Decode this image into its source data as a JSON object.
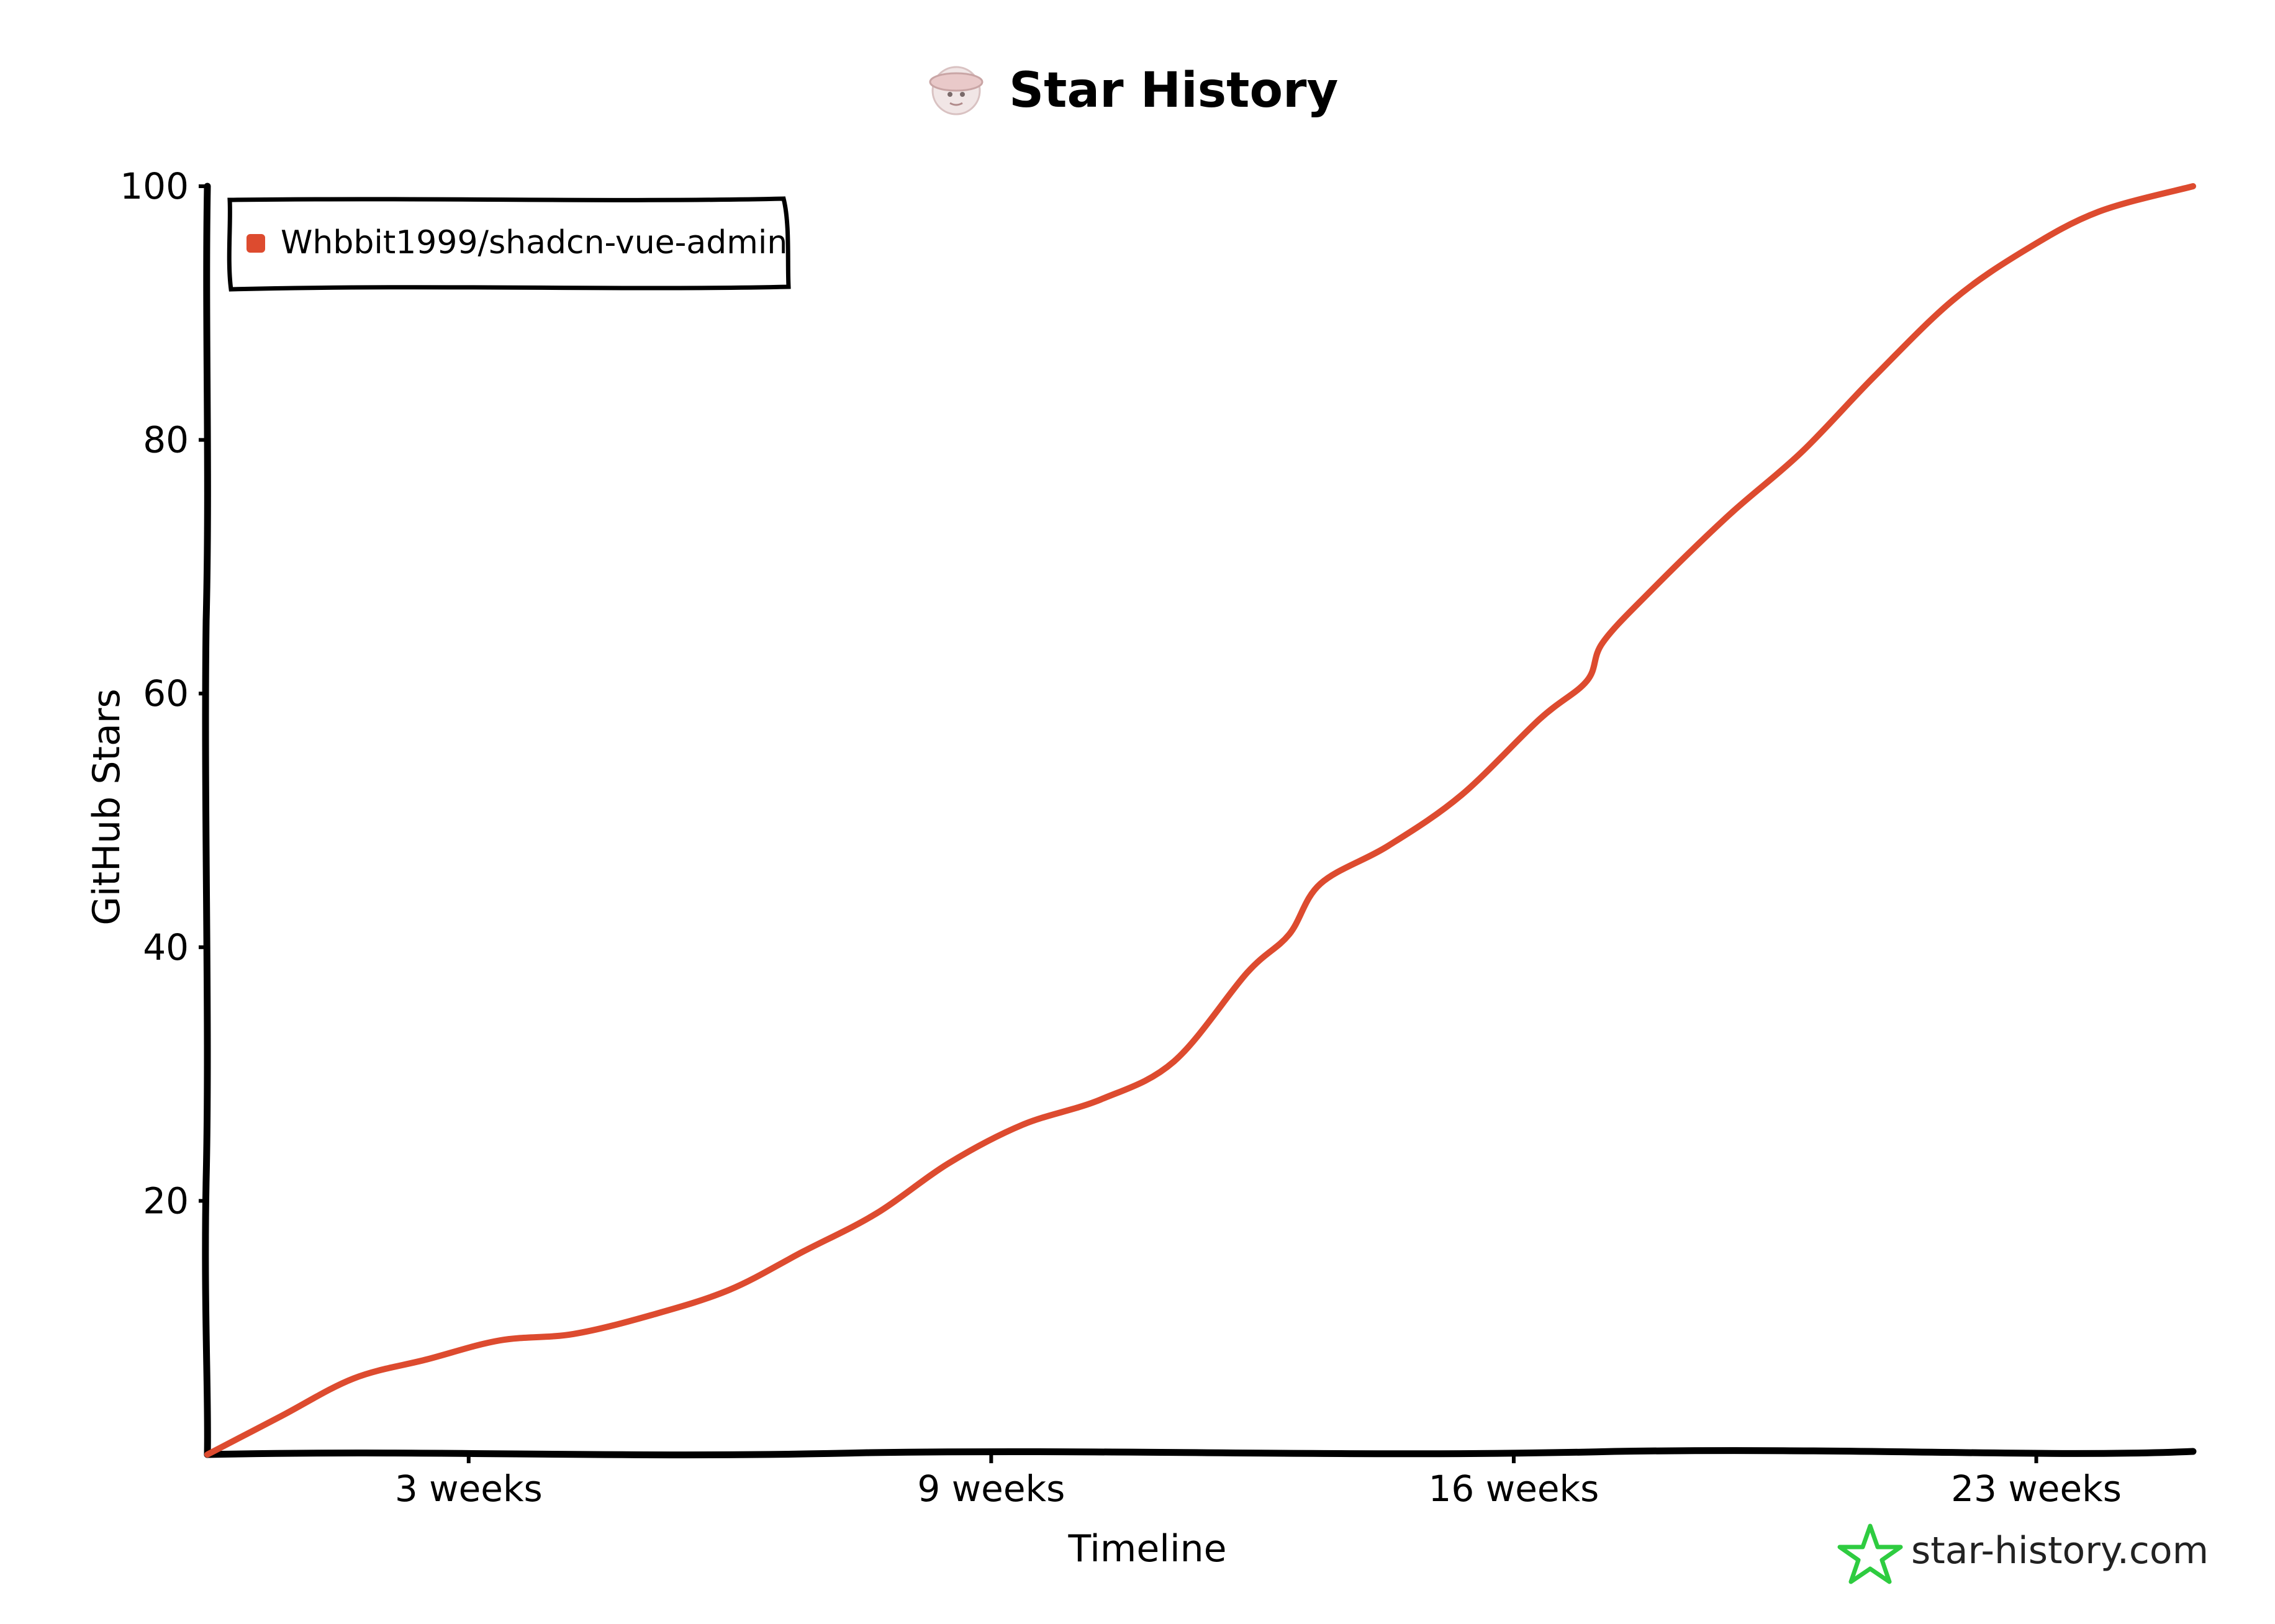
{
  "chart_data": {
    "type": "line",
    "title": "Star History",
    "xlabel": "Timeline",
    "ylabel": "GitHub Stars",
    "ylim": [
      0,
      100
    ],
    "xlim_weeks": [
      -5,
      33
    ],
    "y_ticks": [
      20,
      40,
      60,
      80,
      100
    ],
    "x_ticks": [
      {
        "label": "3 weeks",
        "value": 0
      },
      {
        "label": "9 weeks",
        "value": 10
      },
      {
        "label": "16 weeks",
        "value": 20
      },
      {
        "label": "23 weeks",
        "value": 30
      }
    ],
    "legend_position": "top-left",
    "grid": false,
    "series": [
      {
        "name": "Whbbit1999/shadcn-vue-admin",
        "color": "#dd4b2f",
        "x": [
          -5,
          -3.6,
          -2.2,
          -0.8,
          0.6,
          2,
          3.5,
          5,
          6.4,
          7.8,
          9.2,
          10.6,
          12.1,
          13.5,
          14.9,
          15.7,
          16.3,
          17.6,
          19,
          20.5,
          21.4,
          21.7,
          22.6,
          24.1,
          25.5,
          26.9,
          28.4,
          29.8,
          31.2,
          33
        ],
        "values": [
          0,
          3,
          6,
          7.5,
          9,
          9.5,
          11,
          13,
          16,
          19,
          23,
          26,
          28,
          31,
          38,
          41,
          45,
          48,
          52,
          58,
          61,
          64,
          68,
          74,
          79,
          85,
          91,
          95,
          98,
          100
        ]
      }
    ]
  },
  "legend": {
    "entries": [
      "Whbbit1999/shadcn-vue-admin"
    ]
  },
  "branding": {
    "text": "star-history.com",
    "icon": "star-outline-icon",
    "icon_color": "#2ecc40"
  },
  "title_icon": "avatar-icon"
}
